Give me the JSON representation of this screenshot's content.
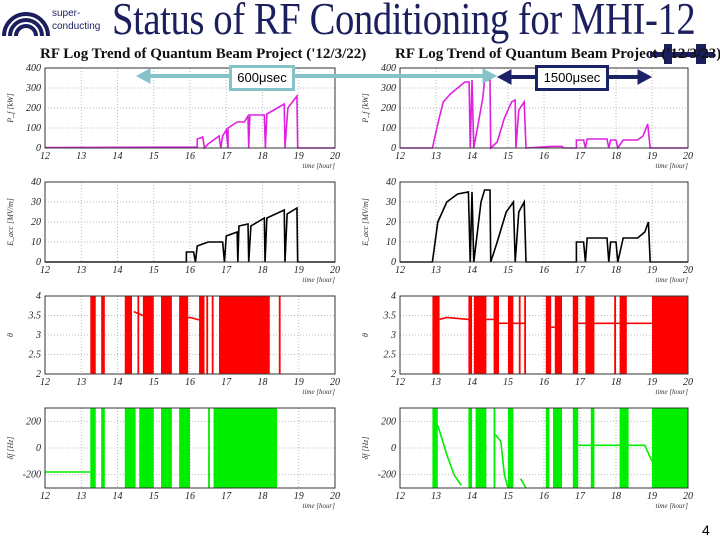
{
  "slide": {
    "title": "Status of RF Conditioning for MHI-12",
    "logo_text": [
      "super-",
      "conducting"
    ],
    "page_number": "4",
    "left_subtitle": "RF Log Trend of Quantum Beam Project ('12/3/22)",
    "right_subtitle": "RF Log Trend of Quantum Beam Project ('12/3/23)",
    "annotations": [
      {
        "label": "600μsec",
        "color": "#86c3c8"
      },
      {
        "label": "1500μsec",
        "color": "#1b2266"
      }
    ]
  },
  "chart_data": [
    {
      "type": "line",
      "color": "#e020e0",
      "ylabel": "P_f [kW]",
      "xlabel": "time [hour]",
      "xlim": [
        12,
        20
      ],
      "xticks": [
        12,
        13,
        14,
        15,
        16,
        17,
        18,
        19,
        20
      ],
      "ylim": [
        0,
        400
      ],
      "yticks": [
        0,
        100,
        200,
        300,
        400
      ],
      "lines": [
        [
          [
            12,
            2
          ],
          [
            16.2,
            5
          ],
          [
            16.2,
            45
          ],
          [
            16.35,
            55
          ],
          [
            16.4,
            0
          ],
          [
            16.5,
            20
          ],
          [
            16.8,
            60
          ],
          [
            16.85,
            0
          ],
          [
            16.9,
            60
          ],
          [
            17.0,
            90
          ],
          [
            17.05,
            0
          ],
          [
            17.05,
            100
          ],
          [
            17.3,
            130
          ],
          [
            17.5,
            130
          ],
          [
            17.6,
            160
          ],
          [
            17.62,
            0
          ],
          [
            17.65,
            165
          ],
          [
            18.05,
            165
          ],
          [
            18.08,
            0
          ],
          [
            18.12,
            170
          ],
          [
            18.6,
            220
          ],
          [
            18.62,
            0
          ],
          [
            18.7,
            200
          ],
          [
            18.95,
            260
          ],
          [
            18.97,
            0
          ],
          [
            20,
            0
          ]
        ]
      ],
      "bands": []
    },
    {
      "type": "line",
      "color": "#e020e0",
      "ylabel": "P_f [kW]",
      "xlabel": "time [hour]",
      "xlim": [
        12,
        20
      ],
      "xticks": [
        12,
        13,
        14,
        15,
        16,
        17,
        18,
        19,
        20
      ],
      "ylim": [
        0,
        400
      ],
      "yticks": [
        0,
        100,
        200,
        300,
        400
      ],
      "lines": [
        [
          [
            12,
            0
          ],
          [
            12.9,
            0
          ],
          [
            13.05,
            120
          ],
          [
            13.2,
            230
          ],
          [
            13.4,
            270
          ],
          [
            13.6,
            300
          ],
          [
            13.8,
            330
          ],
          [
            13.92,
            330
          ],
          [
            13.95,
            0
          ],
          [
            14.0,
            340
          ],
          [
            14.05,
            0
          ],
          [
            14.3,
            250
          ],
          [
            14.35,
            340
          ],
          [
            14.5,
            340
          ],
          [
            14.52,
            0
          ],
          [
            14.7,
            30
          ],
          [
            14.9,
            150
          ],
          [
            15.1,
            230
          ],
          [
            15.2,
            240
          ],
          [
            15.22,
            0
          ],
          [
            15.3,
            190
          ],
          [
            15.45,
            230
          ],
          [
            15.5,
            0
          ],
          [
            16.2,
            8
          ],
          [
            16.5,
            8
          ],
          [
            16.55,
            0
          ],
          [
            16.9,
            0
          ],
          [
            16.9,
            40
          ],
          [
            17.1,
            40
          ],
          [
            17.15,
            0
          ],
          [
            17.2,
            45
          ],
          [
            17.75,
            45
          ],
          [
            17.8,
            0
          ],
          [
            17.85,
            40
          ],
          [
            18.0,
            40
          ],
          [
            18.05,
            0
          ],
          [
            18.2,
            40
          ],
          [
            18.6,
            40
          ],
          [
            18.75,
            60
          ],
          [
            18.88,
            120
          ],
          [
            18.95,
            0
          ],
          [
            20,
            0
          ]
        ]
      ],
      "bands": []
    },
    {
      "type": "line",
      "color": "#000000",
      "ylabel": "E_acc [MV/m]",
      "xlabel": "time [hour]",
      "xlim": [
        12,
        20
      ],
      "xticks": [
        12,
        13,
        14,
        15,
        16,
        17,
        18,
        19,
        20
      ],
      "ylim": [
        0,
        40
      ],
      "yticks": [
        0,
        10,
        20,
        30,
        40
      ],
      "lines": [
        [
          [
            12,
            0
          ],
          [
            15.9,
            0
          ],
          [
            15.9,
            5
          ],
          [
            16.1,
            5
          ],
          [
            16.15,
            0
          ],
          [
            16.2,
            8
          ],
          [
            16.5,
            10
          ],
          [
            16.9,
            10
          ],
          [
            16.95,
            0
          ],
          [
            17.0,
            13
          ],
          [
            17.3,
            15
          ],
          [
            17.32,
            0
          ],
          [
            17.35,
            18
          ],
          [
            17.6,
            19
          ],
          [
            17.62,
            0
          ],
          [
            17.68,
            18
          ],
          [
            18.05,
            22
          ],
          [
            18.07,
            0
          ],
          [
            18.12,
            22
          ],
          [
            18.6,
            26
          ],
          [
            18.62,
            0
          ],
          [
            18.68,
            24
          ],
          [
            18.95,
            27
          ],
          [
            18.97,
            0
          ],
          [
            20,
            0
          ]
        ]
      ],
      "bands": []
    },
    {
      "type": "line",
      "color": "#000000",
      "ylabel": "E_acc [MV/m]",
      "xlabel": "time [hour]",
      "xlim": [
        12,
        20
      ],
      "xticks": [
        12,
        13,
        14,
        15,
        16,
        17,
        18,
        19,
        20
      ],
      "ylim": [
        0,
        40
      ],
      "yticks": [
        0,
        10,
        20,
        30,
        40
      ],
      "lines": [
        [
          [
            12,
            0
          ],
          [
            12.9,
            0
          ],
          [
            13.05,
            20
          ],
          [
            13.3,
            30
          ],
          [
            13.6,
            34
          ],
          [
            13.9,
            35
          ],
          [
            13.95,
            0
          ],
          [
            14.0,
            35
          ],
          [
            14.05,
            0
          ],
          [
            14.25,
            30
          ],
          [
            14.35,
            36
          ],
          [
            14.5,
            36
          ],
          [
            14.52,
            0
          ],
          [
            14.7,
            10
          ],
          [
            14.95,
            25
          ],
          [
            15.15,
            30
          ],
          [
            15.2,
            0
          ],
          [
            15.3,
            25
          ],
          [
            15.45,
            30
          ],
          [
            15.5,
            0
          ],
          [
            16.9,
            0
          ],
          [
            16.9,
            10
          ],
          [
            17.1,
            10
          ],
          [
            17.15,
            0
          ],
          [
            17.2,
            12
          ],
          [
            17.75,
            12
          ],
          [
            17.8,
            0
          ],
          [
            17.85,
            10
          ],
          [
            18.0,
            10
          ],
          [
            18.05,
            0
          ],
          [
            18.2,
            12
          ],
          [
            18.6,
            12
          ],
          [
            18.8,
            15
          ],
          [
            18.9,
            20
          ],
          [
            18.95,
            0
          ],
          [
            20,
            0
          ]
        ]
      ],
      "bands": []
    },
    {
      "type": "line",
      "color": "#ff0000",
      "ylabel": "θ",
      "xlabel": "time [hour]",
      "xlim": [
        12,
        20
      ],
      "xticks": [
        12,
        13,
        14,
        15,
        16,
        17,
        18,
        19,
        20
      ],
      "ylim": [
        2,
        4
      ],
      "yticks": [
        2,
        2.5,
        3,
        3.5,
        4
      ],
      "lines": [
        [
          [
            14.45,
            3.6
          ],
          [
            14.7,
            3.5
          ]
        ],
        [
          [
            15.7,
            3.4
          ],
          [
            16.0,
            3.45
          ],
          [
            16.2,
            3.4
          ],
          [
            16.4,
            3.35
          ]
        ]
      ],
      "bands": [
        [
          13.25,
          13.4
        ],
        [
          13.55,
          13.65
        ],
        [
          14.2,
          14.4
        ],
        [
          14.55,
          14.6
        ],
        [
          14.7,
          15.0
        ],
        [
          15.2,
          15.5
        ],
        [
          15.7,
          15.95
        ],
        [
          16.25,
          16.4
        ],
        [
          16.45,
          16.5
        ],
        [
          16.6,
          16.65
        ],
        [
          16.8,
          18.2
        ],
        [
          18.45,
          18.5
        ]
      ]
    },
    {
      "type": "line",
      "color": "#ff0000",
      "ylabel": "θ",
      "xlabel": "time [hour]",
      "xlim": [
        12,
        20
      ],
      "xticks": [
        12,
        13,
        14,
        15,
        16,
        17,
        18,
        19,
        20
      ],
      "ylim": [
        2,
        4
      ],
      "yticks": [
        2,
        2.5,
        3,
        3.5,
        4
      ],
      "lines": [
        [
          [
            13.1,
            3.4
          ],
          [
            13.3,
            3.45
          ],
          [
            13.9,
            3.4
          ]
        ],
        [
          [
            14.4,
            3.4
          ],
          [
            14.6,
            3.4
          ]
        ],
        [
          [
            14.75,
            3.3
          ],
          [
            15.5,
            3.3
          ]
        ],
        [
          [
            16.2,
            3.2
          ],
          [
            16.3,
            3.2
          ]
        ],
        [
          [
            16.95,
            3.3
          ],
          [
            19.0,
            3.3
          ]
        ]
      ],
      "bands": [
        [
          12.9,
          13.1
        ],
        [
          13.9,
          14.0
        ],
        [
          14.05,
          14.4
        ],
        [
          14.6,
          14.75
        ],
        [
          15.0,
          15.15
        ],
        [
          15.3,
          15.35
        ],
        [
          15.45,
          15.5
        ],
        [
          16.05,
          16.2
        ],
        [
          16.3,
          16.5
        ],
        [
          16.8,
          16.95
        ],
        [
          17.15,
          17.4
        ],
        [
          17.95,
          18.0
        ],
        [
          18.1,
          18.3
        ],
        [
          19.0,
          20.0
        ]
      ]
    },
    {
      "type": "line",
      "color": "#00ee00",
      "ylabel": "δf [Hz]",
      "xlabel": "time [hour]",
      "xlim": [
        12,
        20
      ],
      "xticks": [
        12,
        13,
        14,
        15,
        16,
        17,
        18,
        19,
        20
      ],
      "ylim": [
        -300,
        300
      ],
      "yticks": [
        -200,
        0,
        200
      ],
      "lines": [
        [
          [
            12,
            -180
          ],
          [
            13.25,
            -180
          ]
        ]
      ],
      "bands": [
        [
          13.25,
          13.4
        ],
        [
          13.55,
          13.65
        ],
        [
          14.2,
          14.5
        ],
        [
          14.6,
          15.0
        ],
        [
          15.2,
          15.5
        ],
        [
          15.7,
          16.0
        ],
        [
          16.5,
          16.55
        ],
        [
          16.65,
          18.4
        ]
      ]
    },
    {
      "type": "line",
      "color": "#00ee00",
      "ylabel": "δf [Hz]",
      "xlabel": "time [hour]",
      "xlim": [
        12,
        20
      ],
      "xticks": [
        12,
        13,
        14,
        15,
        16,
        17,
        18,
        19,
        20
      ],
      "ylim": [
        -300,
        300
      ],
      "yticks": [
        -200,
        0,
        200
      ],
      "lines": [
        [
          [
            13.05,
            170
          ],
          [
            13.3,
            -50
          ],
          [
            13.5,
            -200
          ],
          [
            13.7,
            -280
          ]
        ],
        [
          [
            14.65,
            100
          ],
          [
            14.8,
            50
          ],
          [
            14.9,
            -200
          ],
          [
            15.0,
            -300
          ]
        ],
        [
          [
            15.35,
            -230
          ],
          [
            15.5,
            -300
          ]
        ],
        [
          [
            16.95,
            20
          ],
          [
            18.8,
            20
          ],
          [
            19.0,
            -100
          ]
        ]
      ],
      "bands": [
        [
          12.9,
          13.05
        ],
        [
          13.9,
          14.0
        ],
        [
          14.1,
          14.4
        ],
        [
          14.6,
          14.65
        ],
        [
          15.0,
          15.15
        ],
        [
          16.05,
          16.15
        ],
        [
          16.25,
          16.5
        ],
        [
          16.8,
          16.95
        ],
        [
          17.3,
          17.4
        ],
        [
          18.1,
          18.35
        ],
        [
          19.0,
          20.0
        ]
      ]
    }
  ]
}
